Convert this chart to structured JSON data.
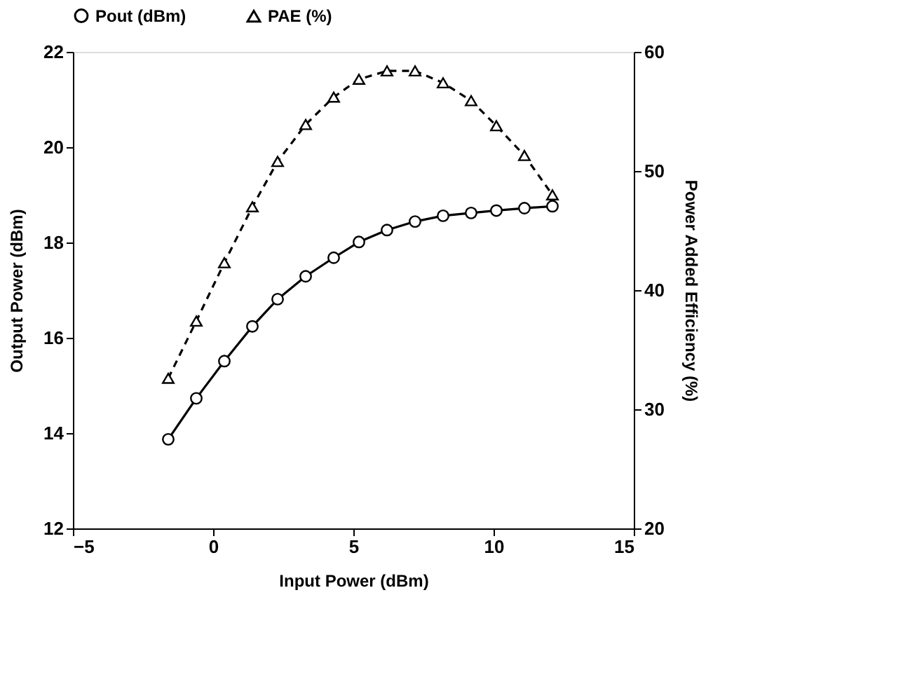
{
  "chart_data": {
    "type": "line",
    "xlabel": "Input Power (dBm)",
    "ylabel": "Output Power (dBm)",
    "y2label": "Power Added Efficiency (%)",
    "x": [
      -1.6,
      -0.6,
      0.4,
      1.4,
      2.3,
      3.3,
      4.3,
      5.2,
      6.2,
      7.2,
      8.2,
      9.2,
      10.1,
      11.1,
      12.1
    ],
    "series": [
      {
        "name": "Pout (dBm)",
        "color": "#000000",
        "marker": "circle",
        "line_style": "solid",
        "values": [
          13.87,
          14.73,
          15.51,
          16.24,
          16.81,
          17.29,
          17.68,
          18.01,
          18.26,
          18.44,
          18.56,
          18.62,
          18.67,
          18.72,
          18.76
        ]
      },
      {
        "name": "PAE (%)",
        "color": "#000000",
        "marker": "triangle",
        "line_style": "dashed",
        "axis": "y2",
        "values": [
          32.6,
          37.4,
          42.3,
          47.0,
          50.8,
          53.9,
          56.2,
          57.7,
          58.4,
          58.4,
          57.4,
          55.9,
          53.8,
          51.3,
          48.0
        ]
      }
    ],
    "xlim": [
      -5,
      15
    ],
    "xticks": [
      -5,
      0,
      5,
      10,
      15
    ],
    "ylim": [
      12,
      22
    ],
    "yticks": [
      12,
      14,
      16,
      18,
      20,
      22
    ],
    "y2lim": [
      20,
      60
    ],
    "y2ticks": [
      20,
      30,
      40,
      50,
      60
    ],
    "grid": false,
    "legend": "top left"
  }
}
